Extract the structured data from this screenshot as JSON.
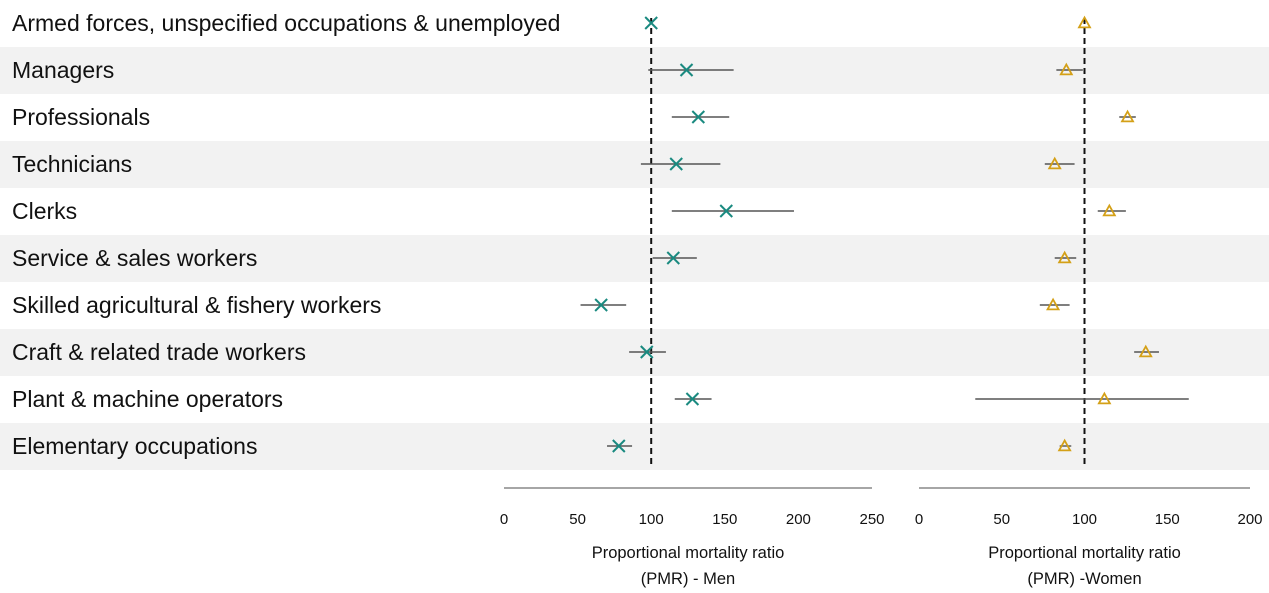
{
  "chart_data": [
    {
      "type": "scatter",
      "panel": "men",
      "xlabel": [
        "Proportional mortality ratio",
        "(PMR) - Men"
      ],
      "xlim": [
        0,
        250
      ],
      "xticks": [
        "0",
        "50",
        "100",
        "150",
        "200",
        "250"
      ],
      "reference_line": 100,
      "marker": "x",
      "color": "#1a8a80",
      "categories": [
        "Armed forces, unspecified occupations & unemployed",
        "Managers",
        "Professionals",
        "Technicians",
        "Clerks",
        "Service & sales workers",
        "Skilled agricultural & fishery workers",
        "Craft & related trade workers",
        "Plant & machine operators",
        "Elementary occupations"
      ],
      "series": [
        {
          "values": [
            100,
            124,
            132,
            117,
            151,
            115,
            66,
            97,
            128,
            78
          ],
          "lower": [
            100,
            98,
            114,
            93,
            114,
            101,
            52,
            85,
            116,
            70
          ],
          "upper": [
            100,
            156,
            153,
            147,
            197,
            131,
            83,
            110,
            141,
            87
          ]
        }
      ]
    },
    {
      "type": "scatter",
      "panel": "women",
      "xlabel": [
        "Proportional mortality ratio",
        "(PMR) -Women"
      ],
      "xlim": [
        0,
        200
      ],
      "xticks": [
        "0",
        "50",
        "100",
        "150",
        "200"
      ],
      "reference_line": 100,
      "marker": "triangle",
      "color": "#d4a017",
      "categories": [
        "Armed forces, unspecified occupations & unemployed",
        "Managers",
        "Professionals",
        "Technicians",
        "Clerks",
        "Service & sales workers",
        "Skilled agricultural & fishery workers",
        "Craft & related trade workers",
        "Plant & machine operators",
        "Elementary occupations"
      ],
      "series": [
        {
          "values": [
            100,
            89,
            126,
            82,
            115,
            88,
            81,
            137,
            112,
            88
          ],
          "lower": [
            100,
            83,
            121,
            76,
            108,
            82,
            73,
            130,
            34,
            85
          ],
          "upper": [
            100,
            99,
            131,
            94,
            125,
            95,
            91,
            145,
            163,
            92
          ]
        }
      ]
    }
  ]
}
